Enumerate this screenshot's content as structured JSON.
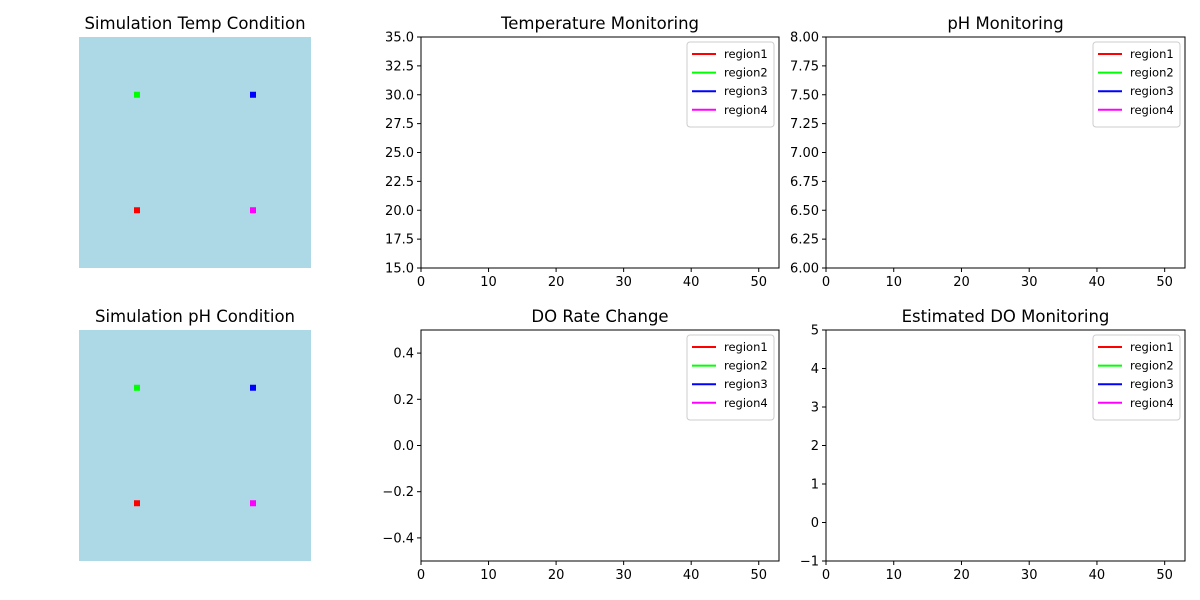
{
  "series_colors": {
    "region1": "#ff0000",
    "region2": "#00ff00",
    "region3": "#0000ff",
    "region4": "#ff00ff"
  },
  "panel_background": "#add8e6",
  "chart_data": [
    {
      "type": "scatter",
      "title": "Simulation Temp Condition",
      "axes_visible": false,
      "points": [
        {
          "name": "region2",
          "color": "#00ff00",
          "x": 0.25,
          "y": 0.75
        },
        {
          "name": "region3",
          "color": "#0000ff",
          "x": 0.75,
          "y": 0.75
        },
        {
          "name": "region1",
          "color": "#ff0000",
          "x": 0.25,
          "y": 0.25
        },
        {
          "name": "region4",
          "color": "#ff00ff",
          "x": 0.75,
          "y": 0.25
        }
      ]
    },
    {
      "type": "line",
      "title": "Temperature Monitoring",
      "xlim": [
        0,
        53
      ],
      "ylim": [
        15,
        35
      ],
      "xticks": [
        "0",
        "10",
        "20",
        "30",
        "40",
        "50"
      ],
      "xtick_values": [
        0,
        10,
        20,
        30,
        40,
        50
      ],
      "yticks": [
        "15.0",
        "17.5",
        "20.0",
        "22.5",
        "25.0",
        "27.5",
        "30.0",
        "32.5",
        "35.0"
      ],
      "ytick_values": [
        15,
        17.5,
        20,
        22.5,
        25,
        27.5,
        30,
        32.5,
        35
      ],
      "legend_position": "upper right",
      "series": [
        {
          "name": "region1",
          "color": "#ff0000",
          "x": [],
          "values": []
        },
        {
          "name": "region2",
          "color": "#00ff00",
          "x": [],
          "values": []
        },
        {
          "name": "region3",
          "color": "#0000ff",
          "x": [],
          "values": []
        },
        {
          "name": "region4",
          "color": "#ff00ff",
          "x": [],
          "values": []
        }
      ]
    },
    {
      "type": "line",
      "title": "pH Monitoring",
      "xlim": [
        0,
        53
      ],
      "ylim": [
        6,
        8
      ],
      "xticks": [
        "0",
        "10",
        "20",
        "30",
        "40",
        "50"
      ],
      "xtick_values": [
        0,
        10,
        20,
        30,
        40,
        50
      ],
      "yticks": [
        "6.00",
        "6.25",
        "6.50",
        "6.75",
        "7.00",
        "7.25",
        "7.50",
        "7.75",
        "8.00"
      ],
      "ytick_values": [
        6,
        6.25,
        6.5,
        6.75,
        7,
        7.25,
        7.5,
        7.75,
        8
      ],
      "legend_position": "upper right",
      "series": [
        {
          "name": "region1",
          "color": "#ff0000",
          "x": [],
          "values": []
        },
        {
          "name": "region2",
          "color": "#00ff00",
          "x": [],
          "values": []
        },
        {
          "name": "region3",
          "color": "#0000ff",
          "x": [],
          "values": []
        },
        {
          "name": "region4",
          "color": "#ff00ff",
          "x": [],
          "values": []
        }
      ]
    },
    {
      "type": "scatter",
      "title": "Simulation pH Condition",
      "axes_visible": false,
      "points": [
        {
          "name": "region2",
          "color": "#00ff00",
          "x": 0.25,
          "y": 0.75
        },
        {
          "name": "region3",
          "color": "#0000ff",
          "x": 0.75,
          "y": 0.75
        },
        {
          "name": "region1",
          "color": "#ff0000",
          "x": 0.25,
          "y": 0.25
        },
        {
          "name": "region4",
          "color": "#ff00ff",
          "x": 0.75,
          "y": 0.25
        }
      ]
    },
    {
      "type": "line",
      "title": "DO Rate Change",
      "xlim": [
        0,
        53
      ],
      "ylim": [
        -0.5,
        0.5
      ],
      "xticks": [
        "0",
        "10",
        "20",
        "30",
        "40",
        "50"
      ],
      "xtick_values": [
        0,
        10,
        20,
        30,
        40,
        50
      ],
      "yticks": [
        "−0.4",
        "−0.2",
        "0.0",
        "0.2",
        "0.4"
      ],
      "ytick_values": [
        -0.4,
        -0.2,
        0,
        0.2,
        0.4
      ],
      "legend_position": "upper right",
      "series": [
        {
          "name": "region1",
          "color": "#ff0000",
          "x": [],
          "values": []
        },
        {
          "name": "region2",
          "color": "#00ff00",
          "x": [],
          "values": []
        },
        {
          "name": "region3",
          "color": "#0000ff",
          "x": [],
          "values": []
        },
        {
          "name": "region4",
          "color": "#ff00ff",
          "x": [],
          "values": []
        }
      ]
    },
    {
      "type": "line",
      "title": "Estimated DO Monitoring",
      "xlim": [
        0,
        53
      ],
      "ylim": [
        -1,
        5
      ],
      "xticks": [
        "0",
        "10",
        "20",
        "30",
        "40",
        "50"
      ],
      "xtick_values": [
        0,
        10,
        20,
        30,
        40,
        50
      ],
      "yticks": [
        "−1",
        "0",
        "1",
        "2",
        "3",
        "4",
        "5"
      ],
      "ytick_values": [
        -1,
        0,
        1,
        2,
        3,
        4,
        5
      ],
      "legend_position": "upper right",
      "series": [
        {
          "name": "region1",
          "color": "#ff0000",
          "x": [],
          "values": []
        },
        {
          "name": "region2",
          "color": "#00ff00",
          "x": [],
          "values": []
        },
        {
          "name": "region3",
          "color": "#0000ff",
          "x": [],
          "values": []
        },
        {
          "name": "region4",
          "color": "#ff00ff",
          "x": [],
          "values": []
        }
      ]
    }
  ]
}
